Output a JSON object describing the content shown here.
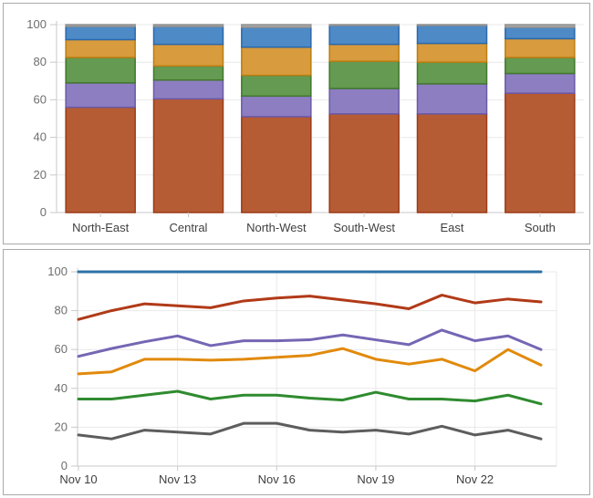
{
  "chart_data": [
    {
      "type": "bar",
      "stacked": true,
      "title": "",
      "categories": [
        "North-East",
        "Central",
        "North-West",
        "South-West",
        "East",
        "South"
      ],
      "series": [
        {
          "color": "#b65c35",
          "border": "#9c3a16",
          "values": [
            56,
            60.5,
            51,
            52.5,
            52.5,
            63.5
          ]
        },
        {
          "color": "#8d7ec1",
          "border": "#6b59a8",
          "values": [
            13,
            10,
            11,
            13.5,
            16,
            10.5
          ]
        },
        {
          "color": "#649a51",
          "border": "#41782c",
          "values": [
            13.5,
            7.5,
            11,
            14.5,
            11.5,
            8.5
          ]
        },
        {
          "color": "#d89b3d",
          "border": "#bc7d11",
          "values": [
            9.5,
            11.5,
            15,
            9,
            10,
            10
          ]
        },
        {
          "color": "#4e8ac6",
          "border": "#2a68ad",
          "values": [
            7,
            9.5,
            10.5,
            10,
            9.5,
            6
          ]
        },
        {
          "color": "#a8a8a8",
          "border": "#919191",
          "values": [
            1,
            1,
            1.5,
            0.5,
            0.5,
            1.5
          ]
        }
      ],
      "y_ticks": [
        0,
        20,
        40,
        60,
        80,
        100
      ],
      "ylim": [
        0,
        100
      ],
      "grid": true,
      "legend": "none"
    },
    {
      "type": "line",
      "title": "",
      "x_tick_labels": [
        "Nov 10",
        "Nov 13",
        "Nov 16",
        "Nov 19",
        "Nov 22"
      ],
      "x_tick_step": 3,
      "points_per_series": 15,
      "series": [
        {
          "color": "#2c70a6",
          "values": [
            100,
            100,
            100,
            100,
            100,
            100,
            100,
            100,
            100,
            100,
            100,
            100,
            100,
            100,
            100
          ]
        },
        {
          "color": "#b13a18",
          "values": [
            75.5,
            80,
            83.5,
            82.5,
            81.5,
            85,
            86.5,
            87.5,
            85.5,
            83.5,
            81,
            88,
            84,
            86,
            84.5
          ]
        },
        {
          "color": "#7566b4",
          "values": [
            56.5,
            60.5,
            64,
            67,
            62,
            64.5,
            64.5,
            65,
            67.5,
            65,
            62.5,
            70,
            64.5,
            67,
            60
          ]
        },
        {
          "color": "#e18a0c",
          "values": [
            47.5,
            48.5,
            55,
            55,
            54.5,
            55,
            56,
            57,
            60.5,
            55,
            52.5,
            55,
            49,
            60,
            52
          ]
        },
        {
          "color": "#2f8b2f",
          "values": [
            34.5,
            34.5,
            36.5,
            38.5,
            34.5,
            36.5,
            36.5,
            35,
            34,
            38,
            34.5,
            34.5,
            33.5,
            36.5,
            32
          ]
        },
        {
          "color": "#5d5d5d",
          "values": [
            16,
            14,
            18.5,
            17.5,
            16.5,
            22,
            22,
            18.5,
            17.5,
            18.5,
            16.5,
            20.5,
            16,
            18.5,
            14
          ]
        }
      ],
      "y_ticks": [
        0,
        20,
        40,
        60,
        80,
        100
      ],
      "ylim": [
        0,
        100
      ],
      "grid": true,
      "legend": "none"
    }
  ],
  "style": {
    "panel_border": "#a9a9a9",
    "background": "#ffffff",
    "grid_color": "#e9e9e9",
    "axis_color": "#c9c9c9",
    "tick_label_color": "#6e6e6e",
    "category_label_color": "#3f3f3f"
  }
}
